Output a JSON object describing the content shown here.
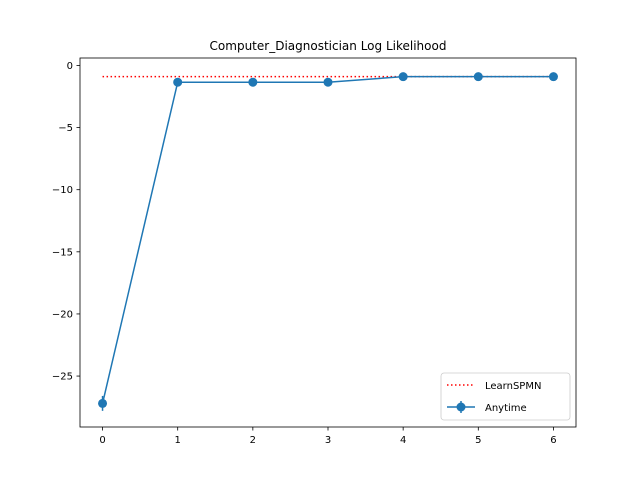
{
  "chart_data": {
    "type": "line",
    "title": "Computer_Diagnostician Log Likelihood",
    "xlabel": "",
    "ylabel": "",
    "xlim": [
      -0.3,
      6.3
    ],
    "ylim": [
      -29.1,
      0.6
    ],
    "x_ticks": [
      0,
      1,
      2,
      3,
      4,
      5,
      6
    ],
    "y_ticks": [
      0,
      -5,
      -10,
      -15,
      -20,
      -25
    ],
    "grid": false,
    "legend_position": "lower right",
    "series": [
      {
        "name": "LearnSPMN",
        "style": "dotted",
        "color": "#ff0000",
        "x": [
          0,
          6
        ],
        "y": [
          -0.9,
          -0.9
        ]
      },
      {
        "name": "Anytime",
        "style": "solid-marker-errorbar",
        "color": "#1f77b4",
        "x": [
          0,
          1,
          2,
          3,
          4,
          5,
          6
        ],
        "y": [
          -27.2,
          -1.35,
          -1.35,
          -1.35,
          -0.9,
          -0.9,
          -0.9
        ],
        "yerr": [
          0.6,
          0.05,
          0.05,
          0.05,
          0.05,
          0.05,
          0.05
        ]
      }
    ]
  }
}
